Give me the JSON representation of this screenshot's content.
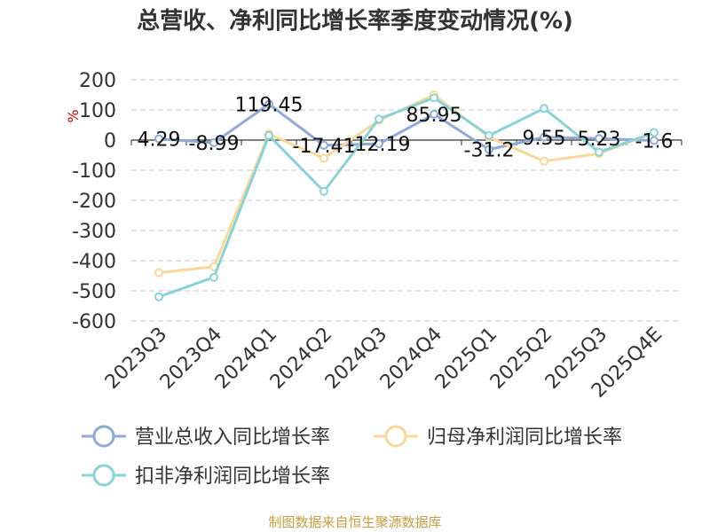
{
  "chart_data": {
    "type": "line",
    "title": "总营收、净利同比增长率季度变动情况(%)",
    "ylabel": "%",
    "xlabel": "",
    "ylim": [
      -600,
      200
    ],
    "yticks": [
      200,
      100,
      0,
      -100,
      -200,
      -300,
      -400,
      -500,
      -600
    ],
    "grid": true,
    "legend_position": "bottom",
    "categories": [
      "2023Q3",
      "2023Q4",
      "2024Q1",
      "2024Q2",
      "2024Q3",
      "2024Q4",
      "2025Q1",
      "2025Q2",
      "2025Q3",
      "2025Q4E"
    ],
    "series": [
      {
        "name": "营业总收入同比增长率",
        "color": "#8fa9d8",
        "values": [
          4.29,
          -8.99,
          119.45,
          -17.41,
          -12.19,
          85.95,
          -31.2,
          9.55,
          5.23,
          -1.6
        ],
        "labels": [
          "4.29",
          "-8.99",
          "119.45",
          "-17.41",
          "-12.19",
          "85.95",
          "-31.2",
          "9.55",
          "5.23",
          "-1.6"
        ]
      },
      {
        "name": "归母净利润同比增长率",
        "color": "#fad89a",
        "values": [
          -440,
          -420,
          20,
          -60,
          65,
          150,
          10,
          -70,
          -45,
          25
        ]
      },
      {
        "name": "扣非净利润同比增长率",
        "color": "#88d3d8",
        "values": [
          -520,
          -455,
          15,
          -170,
          70,
          140,
          15,
          105,
          -40,
          25
        ]
      }
    ],
    "source": "制图数据来自恒生聚源数据库"
  }
}
